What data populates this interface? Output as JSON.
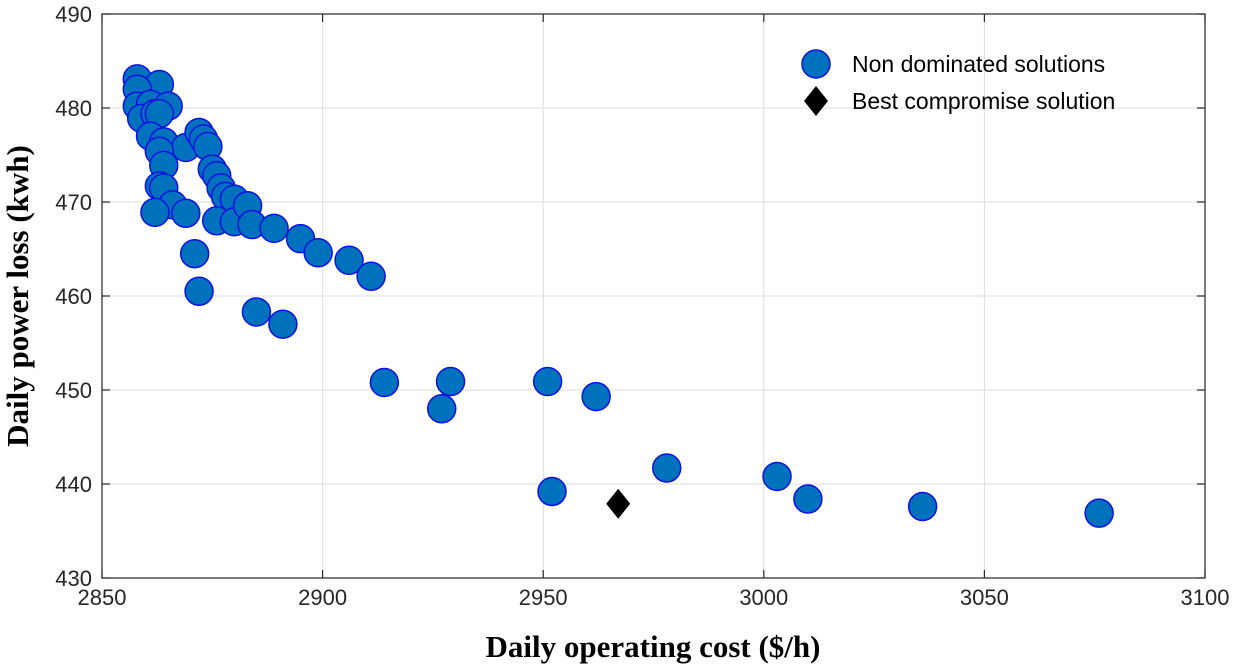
{
  "chart_data": {
    "type": "scatter",
    "xlabel": "Daily operating cost ($/h)",
    "ylabel": "Daily power loss (kwh)",
    "xlim": [
      2850,
      3100
    ],
    "ylim": [
      430,
      490
    ],
    "x_ticks": [
      2850,
      2900,
      2950,
      3000,
      3050,
      3100
    ],
    "y_ticks": [
      430,
      440,
      450,
      460,
      470,
      480,
      490
    ],
    "grid": true,
    "legend_position": "top-right",
    "colors": {
      "non_dominated_fill": "#0072BD",
      "non_dominated_edge": "#1010E0",
      "best_compromise": "#000000",
      "grid": "#DCDCDC",
      "axis": "#262626"
    },
    "series": [
      {
        "name": "Non dominated solutions",
        "marker": "circle",
        "points": [
          {
            "x": 2858,
            "y": 483.1
          },
          {
            "x": 2863,
            "y": 482.5
          },
          {
            "x": 2858,
            "y": 482.0
          },
          {
            "x": 2858,
            "y": 480.2
          },
          {
            "x": 2861,
            "y": 480.4
          },
          {
            "x": 2865,
            "y": 480.2
          },
          {
            "x": 2859,
            "y": 478.9
          },
          {
            "x": 2862,
            "y": 479.4
          },
          {
            "x": 2863,
            "y": 479.4
          },
          {
            "x": 2861,
            "y": 477.0
          },
          {
            "x": 2864,
            "y": 476.4
          },
          {
            "x": 2869,
            "y": 475.8
          },
          {
            "x": 2872,
            "y": 477.4
          },
          {
            "x": 2873,
            "y": 476.7
          },
          {
            "x": 2874,
            "y": 475.9
          },
          {
            "x": 2863,
            "y": 475.4
          },
          {
            "x": 2864,
            "y": 473.9
          },
          {
            "x": 2875,
            "y": 473.5
          },
          {
            "x": 2876,
            "y": 472.8
          },
          {
            "x": 2877,
            "y": 471.5
          },
          {
            "x": 2878,
            "y": 470.6
          },
          {
            "x": 2880,
            "y": 470.3
          },
          {
            "x": 2863,
            "y": 471.7
          },
          {
            "x": 2864,
            "y": 471.5
          },
          {
            "x": 2866,
            "y": 469.7
          },
          {
            "x": 2869,
            "y": 468.8
          },
          {
            "x": 2862,
            "y": 468.9
          },
          {
            "x": 2876,
            "y": 468.0
          },
          {
            "x": 2880,
            "y": 467.9
          },
          {
            "x": 2883,
            "y": 469.6
          },
          {
            "x": 2884,
            "y": 467.6
          },
          {
            "x": 2889,
            "y": 467.2
          },
          {
            "x": 2895,
            "y": 466.1
          },
          {
            "x": 2899,
            "y": 464.6
          },
          {
            "x": 2906,
            "y": 463.8
          },
          {
            "x": 2911,
            "y": 462.1
          },
          {
            "x": 2871,
            "y": 464.5
          },
          {
            "x": 2872,
            "y": 460.5
          },
          {
            "x": 2885,
            "y": 458.3
          },
          {
            "x": 2891,
            "y": 457.0
          },
          {
            "x": 2914,
            "y": 450.8
          },
          {
            "x": 2929,
            "y": 450.9
          },
          {
            "x": 2927,
            "y": 448.0
          },
          {
            "x": 2951,
            "y": 450.9
          },
          {
            "x": 2962,
            "y": 449.3
          },
          {
            "x": 2952,
            "y": 439.2
          },
          {
            "x": 2978,
            "y": 441.7
          },
          {
            "x": 3003,
            "y": 440.8
          },
          {
            "x": 3010,
            "y": 438.4
          },
          {
            "x": 3036,
            "y": 437.6
          },
          {
            "x": 3076,
            "y": 436.9
          }
        ]
      },
      {
        "name": "Best compromise solution",
        "marker": "diamond",
        "points": [
          {
            "x": 2967,
            "y": 437.9
          }
        ]
      }
    ]
  }
}
